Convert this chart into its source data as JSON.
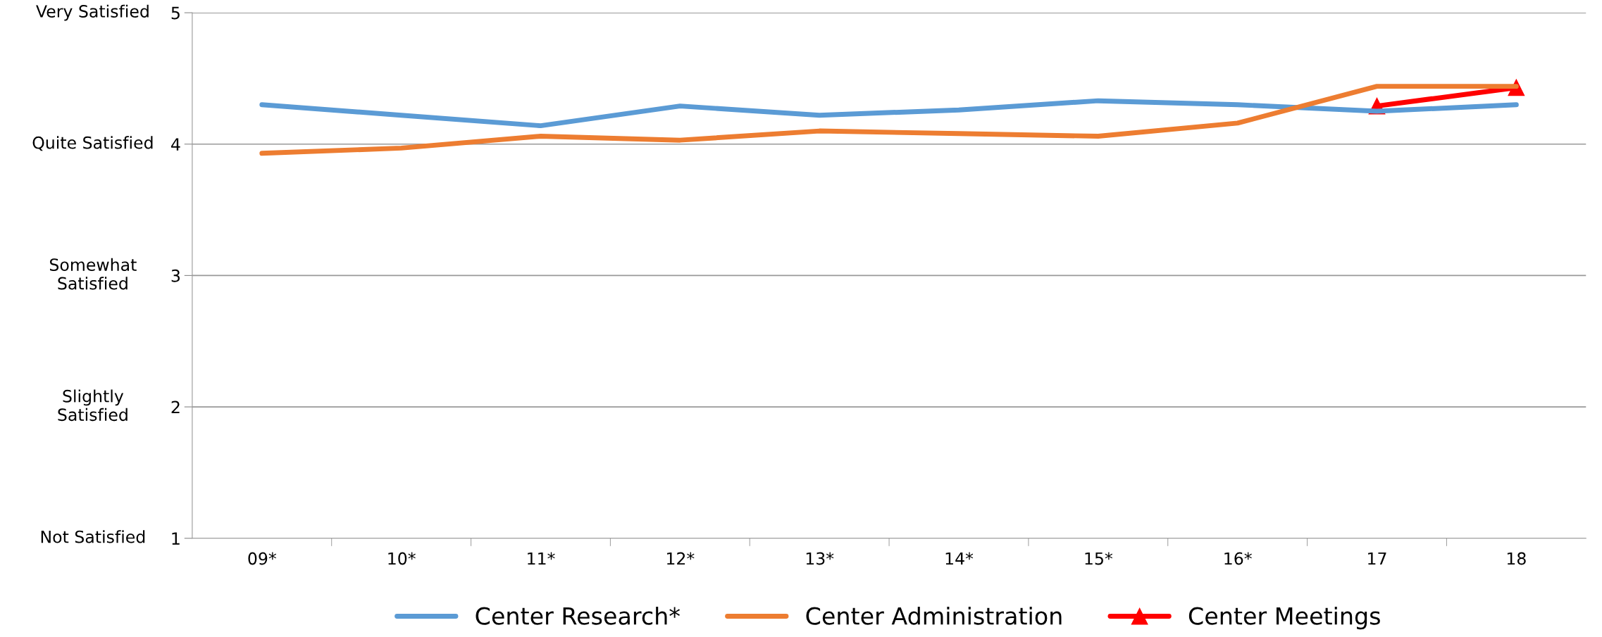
{
  "chart_data": {
    "type": "line",
    "categories": [
      "09*",
      "10*",
      "11*",
      "12*",
      "13*",
      "14*",
      "15*",
      "16*",
      "17",
      "18"
    ],
    "series": [
      {
        "name": "Center Research*",
        "color": "#5b9bd5",
        "marker": "none",
        "values": [
          4.3,
          4.22,
          4.14,
          4.29,
          4.22,
          4.26,
          4.33,
          4.3,
          4.25,
          4.3
        ]
      },
      {
        "name": "Center Administration",
        "color": "#ed7d31",
        "marker": "none",
        "values": [
          3.93,
          3.97,
          4.06,
          4.03,
          4.1,
          4.08,
          4.06,
          4.16,
          4.44,
          4.44
        ]
      },
      {
        "name": "Center Meetings",
        "color": "#ff0000",
        "marker": "triangle",
        "values": [
          null,
          null,
          null,
          null,
          null,
          null,
          null,
          null,
          4.29,
          4.43
        ]
      }
    ],
    "ylim": [
      1,
      5
    ],
    "yticks": [
      1,
      2,
      3,
      4,
      5
    ],
    "annotations": [
      "Not Satisfied",
      "Slightly\nSatisfied",
      "Somewhat\nSatisfied",
      "Quite Satisfied",
      "Very Satisfied"
    ],
    "grid": "y",
    "legend": "bottom",
    "line_style": "solid"
  }
}
